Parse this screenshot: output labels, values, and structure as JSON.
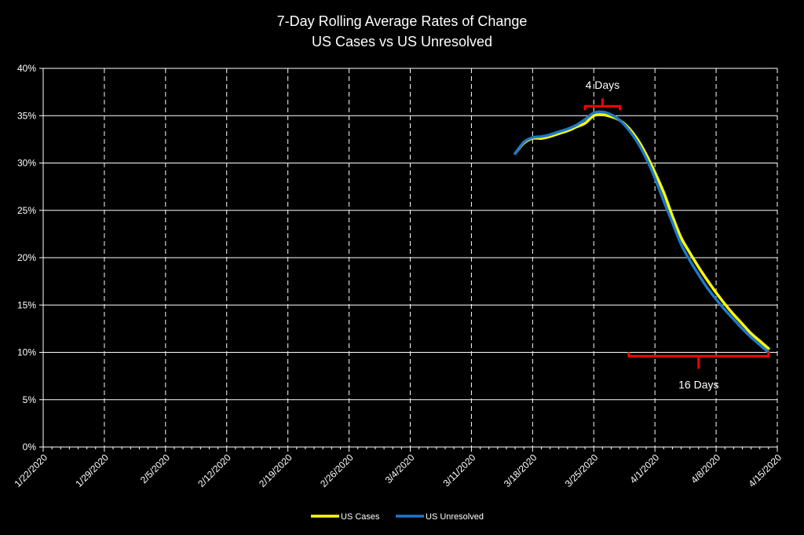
{
  "chart_data": {
    "type": "line",
    "title": "7-Day Rolling Average Rates of Change",
    "subtitle": "US Cases vs US Unresolved",
    "ylim": [
      0,
      40
    ],
    "y_ticks": [
      "0%",
      "5%",
      "10%",
      "15%",
      "20%",
      "25%",
      "30%",
      "35%",
      "40%"
    ],
    "x_ticks": [
      "1/22/2020",
      "1/29/2020",
      "2/5/2020",
      "2/12/2020",
      "2/19/2020",
      "2/26/2020",
      "3/4/2020",
      "3/11/2020",
      "3/18/2020",
      "3/25/2020",
      "4/1/2020",
      "4/8/2020",
      "4/15/2020"
    ],
    "grid": true,
    "legend_position": "bottom",
    "series": [
      {
        "name": "US Cases",
        "color": "#ffff00",
        "points": [
          [
            "3/16/2020",
            31.0
          ],
          [
            "3/17/2020",
            32.1
          ],
          [
            "3/18/2020",
            32.6
          ],
          [
            "3/19/2020",
            32.6
          ],
          [
            "3/20/2020",
            32.8
          ],
          [
            "3/21/2020",
            33.1
          ],
          [
            "3/22/2020",
            33.4
          ],
          [
            "3/23/2020",
            33.8
          ],
          [
            "3/24/2020",
            34.2
          ],
          [
            "3/25/2020",
            35.0
          ],
          [
            "3/26/2020",
            35.1
          ],
          [
            "3/27/2020",
            34.9
          ],
          [
            "3/28/2020",
            34.5
          ],
          [
            "3/29/2020",
            33.7
          ],
          [
            "3/30/2020",
            32.5
          ],
          [
            "3/31/2020",
            30.9
          ],
          [
            "4/1/2020",
            29.0
          ],
          [
            "4/2/2020",
            26.9
          ],
          [
            "4/3/2020",
            24.4
          ],
          [
            "4/4/2020",
            22.1
          ],
          [
            "4/5/2020",
            20.5
          ],
          [
            "4/6/2020",
            19.0
          ],
          [
            "4/7/2020",
            17.6
          ],
          [
            "4/8/2020",
            16.3
          ],
          [
            "4/9/2020",
            15.1
          ],
          [
            "4/10/2020",
            14.0
          ],
          [
            "4/11/2020",
            13.0
          ],
          [
            "4/12/2020",
            12.0
          ],
          [
            "4/13/2020",
            11.2
          ],
          [
            "4/14/2020",
            10.4
          ]
        ]
      },
      {
        "name": "US Unresolved",
        "color": "#1f78c8",
        "points": [
          [
            "3/16/2020",
            31.0
          ],
          [
            "3/17/2020",
            32.2
          ],
          [
            "3/18/2020",
            32.7
          ],
          [
            "3/19/2020",
            32.8
          ],
          [
            "3/20/2020",
            33.0
          ],
          [
            "3/21/2020",
            33.3
          ],
          [
            "3/22/2020",
            33.6
          ],
          [
            "3/23/2020",
            34.0
          ],
          [
            "3/24/2020",
            34.6
          ],
          [
            "3/25/2020",
            35.3
          ],
          [
            "3/26/2020",
            35.4
          ],
          [
            "3/27/2020",
            35.1
          ],
          [
            "3/28/2020",
            34.5
          ],
          [
            "3/29/2020",
            33.5
          ],
          [
            "3/30/2020",
            32.2
          ],
          [
            "3/31/2020",
            30.5
          ],
          [
            "4/1/2020",
            28.4
          ],
          [
            "4/2/2020",
            26.0
          ],
          [
            "4/3/2020",
            23.7
          ],
          [
            "4/4/2020",
            21.4
          ],
          [
            "4/5/2020",
            19.7
          ],
          [
            "4/6/2020",
            18.2
          ],
          [
            "4/7/2020",
            16.8
          ],
          [
            "4/8/2020",
            15.6
          ],
          [
            "4/9/2020",
            14.5
          ],
          [
            "4/10/2020",
            13.5
          ],
          [
            "4/11/2020",
            12.5
          ],
          [
            "4/12/2020",
            11.6
          ],
          [
            "4/13/2020",
            10.8
          ],
          [
            "4/14/2020",
            10.0
          ]
        ]
      }
    ],
    "annotations": [
      {
        "label": "4 Days",
        "from": "3/24/2020",
        "to": "3/28/2020",
        "y": 36.0,
        "color": "#ff0000"
      },
      {
        "label": "16 Days",
        "from": "3/29/2020",
        "to": "4/14/2020",
        "y": 9.6,
        "color": "#ff0000"
      }
    ]
  }
}
